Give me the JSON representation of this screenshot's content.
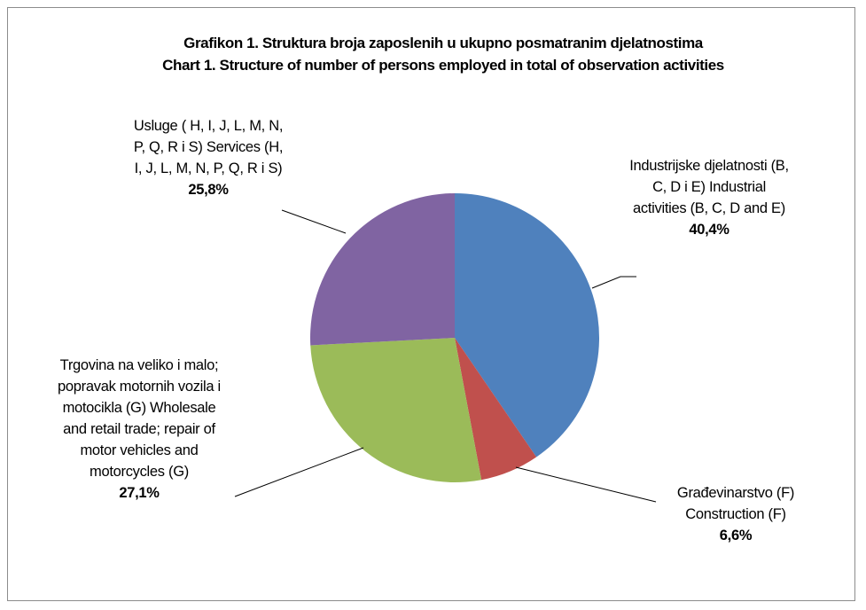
{
  "chart_data": {
    "type": "pie",
    "title": "Grafikon 1. Struktura broja zaposlenih u ukupno posmatranim djelatnostima",
    "subtitle": "Chart 1. Structure of number of persons employed in total of observation activities",
    "categories": [
      "Industrijske djelatnosti (B, C, D i E) Industrial activities (B, C, D and E)",
      "Građevinarstvo (F) Construction (F)",
      "Trgovina na veliko i malo; popravak motornih vozila i motocikla (G) Wholesale and retail trade; repair of motor vehicles and motorcycles (G)",
      "Usluge ( H, I, J, L, M, N, P, Q, R i S) Services (H, I, J, L, M, N, P, Q, R i S)"
    ],
    "values": [
      40.4,
      6.6,
      27.1,
      25.8
    ],
    "value_labels": [
      "40,4%",
      "6,6%",
      "27,1%",
      "25,8%"
    ],
    "colors": [
      "#4f81bd",
      "#c0504d",
      "#9bbb59",
      "#8064a2"
    ]
  }
}
